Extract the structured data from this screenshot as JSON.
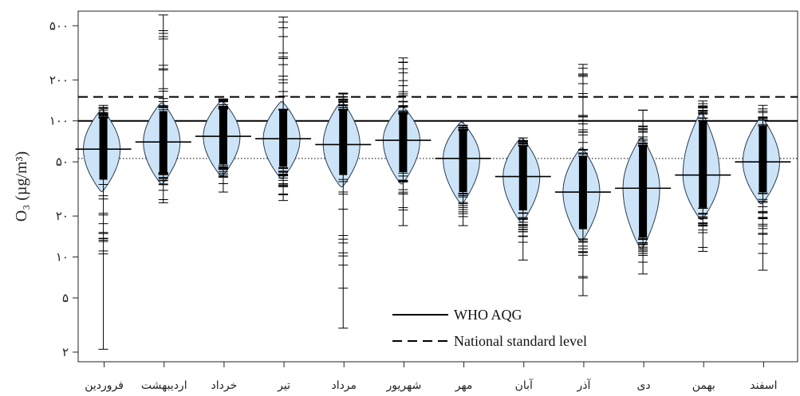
{
  "chart_data": {
    "type": "beanplot",
    "ylabel": "O₃ (µg/m³)",
    "yscale": "log",
    "ylim": [
      1.7,
      640
    ],
    "ytick_values": [
      2,
      5,
      10,
      20,
      50,
      100,
      200,
      500
    ],
    "ytick_labels": [
      "۲",
      "۵",
      "۱۰",
      "۲۰",
      "۵۰",
      "۱۰۰",
      "۲۰۰",
      "۵۰۰"
    ],
    "categories": [
      "فروردین",
      "اردیبهشت",
      "خرداد",
      "تیر",
      "مرداد",
      "شهریور",
      "مهر",
      "آبان",
      "آذر",
      "دی",
      "بهمن",
      "اسفند"
    ],
    "series": [
      {
        "mean": 62,
        "min": 2.1,
        "max": 130,
        "q_low": 37,
        "q_high": 105
      },
      {
        "mean": 70,
        "min": 25,
        "max": 600,
        "q_low": 42,
        "q_high": 118
      },
      {
        "mean": 77,
        "min": 30,
        "max": 145,
        "q_low": 48,
        "q_high": 122
      },
      {
        "mean": 74,
        "min": 26,
        "max": 580,
        "q_low": 46,
        "q_high": 120
      },
      {
        "mean": 67,
        "min": 3.0,
        "max": 160,
        "q_low": 40,
        "q_high": 120
      },
      {
        "mean": 72,
        "min": 17,
        "max": 290,
        "q_low": 42,
        "q_high": 112
      },
      {
        "mean": 53,
        "min": 17,
        "max": 93,
        "q_low": 30,
        "q_high": 85
      },
      {
        "mean": 39,
        "min": 9.5,
        "max": 75,
        "q_low": 22,
        "q_high": 65
      },
      {
        "mean": 30,
        "min": 5.2,
        "max": 260,
        "q_low": 16,
        "q_high": 55
      },
      {
        "mean": 32,
        "min": 7.5,
        "max": 120,
        "q_low": 14,
        "q_high": 65
      },
      {
        "mean": 40,
        "min": 11,
        "max": 140,
        "q_low": 23,
        "q_high": 100
      },
      {
        "mean": 50,
        "min": 8,
        "max": 130,
        "q_low": 30,
        "q_high": 92
      }
    ],
    "reference_lines": [
      {
        "label": "WHO AQG",
        "value": 100,
        "style": "solid"
      },
      {
        "label": "National standard level",
        "value": 150,
        "style": "dashed"
      },
      {
        "label": "",
        "value": 53,
        "style": "dotted"
      }
    ],
    "legend": [
      "WHO AQG",
      "National standard level"
    ],
    "legend_position": "bottom-center",
    "colors": {
      "bean_fill": "#cde4f8",
      "bean_stroke": "#2a3a4a",
      "points": "#000000",
      "lines": "#000000"
    }
  }
}
